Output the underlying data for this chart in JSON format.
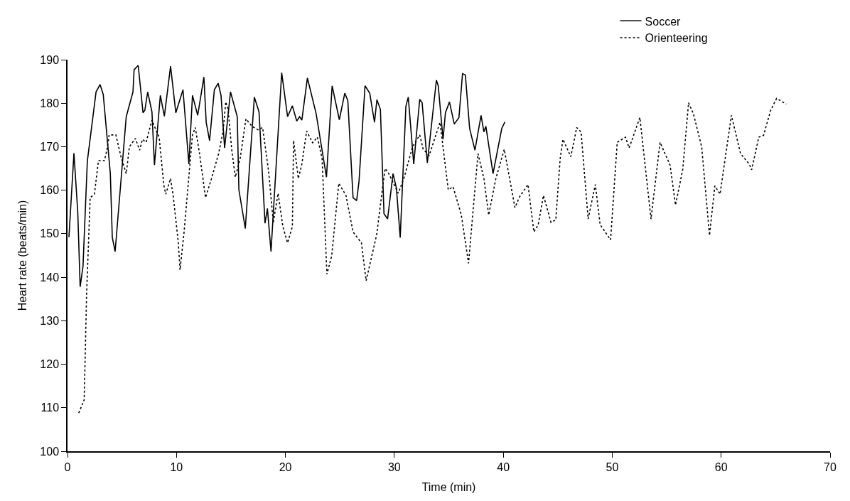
{
  "chart_data": {
    "type": "line",
    "xlabel": "Time (min)",
    "ylabel": "Heart rate (beats/min)",
    "xlim": [
      0,
      70
    ],
    "xticks": [
      0,
      10,
      20,
      30,
      40,
      50,
      60,
      70
    ],
    "ylim": [
      100,
      190
    ],
    "yticks": [
      100,
      110,
      120,
      130,
      140,
      150,
      160,
      170,
      180,
      190
    ],
    "legend": "top right",
    "marker": "none",
    "series": [
      {
        "name": "Soccer",
        "color": "#000000",
        "line_style": "solid",
        "x": [
          0.13,
          0.59,
          0.94,
          1.16,
          1.42,
          1.82,
          2.62,
          2.99,
          3.28,
          3.93,
          4.11,
          4.37,
          5.39,
          6.01,
          6.11,
          6.49,
          6.93,
          7.1,
          7.36,
          7.75,
          7.98,
          8.52,
          8.89,
          9.46,
          9.94,
          10.6,
          11.14,
          11.47,
          11.95,
          12.52,
          12.73,
          13.04,
          13.48,
          13.83,
          14.09,
          14.42,
          14.96,
          15.58,
          15.73,
          16.32,
          17.15,
          17.58,
          18.13,
          18.35,
          18.68,
          19.66,
          20.2,
          20.64,
          21.04,
          21.3,
          21.51,
          22.02,
          22.82,
          23.77,
          24.29,
          24.95,
          25.45,
          25.73,
          26.21,
          26.54,
          26.76,
          27.31,
          27.74,
          28.18,
          28.4,
          28.72,
          29.05,
          29.38,
          29.88,
          30.19,
          30.54,
          31.06,
          31.28,
          31.78,
          32.33,
          32.55,
          33.03,
          33.86,
          34.03,
          34.47,
          34.69,
          35.06,
          35.5,
          35.93,
          36.26,
          36.52,
          36.91,
          37.4,
          37.96,
          38.22,
          38.4,
          39.06,
          39.86,
          40.15
        ],
        "values": [
          149.2,
          168.5,
          155,
          137.8,
          142.5,
          166.7,
          182.6,
          184.3,
          182,
          163.8,
          149.2,
          145.9,
          176.9,
          182.6,
          187.7,
          188.7,
          177.8,
          178.4,
          182.6,
          178,
          165.8,
          181.8,
          177,
          188.5,
          177.8,
          183.1,
          166,
          181.8,
          177.2,
          186,
          175.6,
          171.4,
          183.1,
          184.6,
          181.8,
          169.7,
          182.6,
          176.9,
          160.1,
          151.2,
          181.4,
          178,
          152.4,
          155.8,
          145.9,
          187,
          176.9,
          179.4,
          175.9,
          176.9,
          176.1,
          185.8,
          177.6,
          163,
          184,
          176.2,
          182.3,
          180.6,
          158.3,
          157.6,
          162.1,
          184,
          182.3,
          175.6,
          180.8,
          178.6,
          154.6,
          153.4,
          163.8,
          160.5,
          149.1,
          179.3,
          181.4,
          166,
          180.9,
          180.1,
          166.3,
          185.3,
          184,
          171.7,
          177.8,
          180.3,
          175.2,
          176.7,
          186.8,
          186.5,
          174.2,
          169.2,
          177.2,
          173.4,
          174.7,
          163.8,
          174.2,
          175.7
        ]
      },
      {
        "name": "Orienteering",
        "color": "#000000",
        "line_style": "dotted",
        "x": [
          1.03,
          1.53,
          1.75,
          2.08,
          2.47,
          2.84,
          3.39,
          3.65,
          3.82,
          4.44,
          4.91,
          5.18,
          5.39,
          5.68,
          6.23,
          6.62,
          6.88,
          7.21,
          7.75,
          8.19,
          8.41,
          8.85,
          9.02,
          9.46,
          9.72,
          10.16,
          10.33,
          10.7,
          11.47,
          11.73,
          12.12,
          12.67,
          13.22,
          13.87,
          14.27,
          14.53,
          14.74,
          15.07,
          15.4,
          15.84,
          16.38,
          16.93,
          17.48,
          17.91,
          18.46,
          18.89,
          19.33,
          19.77,
          20.2,
          20.64,
          20.75,
          21.19,
          21.51,
          21.95,
          22.5,
          22.94,
          23.37,
          23.81,
          24.25,
          24.9,
          25.56,
          26.21,
          26.98,
          27.41,
          28.39,
          28.94,
          29.16,
          29.49,
          30.36,
          30.91,
          31.67,
          32.33,
          32.65,
          33.2,
          34.19,
          34.95,
          35.39,
          36.15,
          36.81,
          37.68,
          38.22,
          38.66,
          39.32,
          40.09,
          41.07,
          41.5,
          42.27,
          42.81,
          43.2,
          43.69,
          44.38,
          44.82,
          45.22,
          45.48,
          46.2,
          46.74,
          47.14,
          47.79,
          48.45,
          48.89,
          49.85,
          50.46,
          51.22,
          51.55,
          52.54,
          53.56,
          54.39,
          55.31,
          55.81,
          56.47,
          57.01,
          57.45,
          58.21,
          58.93,
          59.42,
          59.9,
          60.07,
          60.94,
          61.78,
          62.58,
          62.8,
          63.45,
          63.89,
          64.55,
          65.09,
          65.97
        ],
        "values": [
          108.8,
          111.8,
          136,
          158.3,
          159.1,
          166.8,
          166.8,
          169.7,
          172.7,
          172.7,
          167.7,
          165.5,
          163.8,
          170,
          171.9,
          169.2,
          171.7,
          171,
          176.1,
          173.4,
          172.2,
          161,
          159.1,
          162.7,
          158.3,
          148.2,
          141.7,
          150.4,
          172.7,
          174.4,
          168.4,
          158.3,
          162.7,
          168.4,
          173.4,
          180.3,
          178.6,
          169.4,
          163,
          167.2,
          176.4,
          174.7,
          173.9,
          174.4,
          164.3,
          152.6,
          159.3,
          151.6,
          147.9,
          151.6,
          171.4,
          162.7,
          166,
          173.6,
          170.9,
          172.2,
          167.2,
          140.7,
          144.9,
          161.6,
          158.8,
          150.4,
          147.9,
          139.2,
          149.9,
          161,
          165,
          163.8,
          159.3,
          163,
          170,
          172.7,
          169.4,
          168,
          175.6,
          160.1,
          160.8,
          154.3,
          143.2,
          168.4,
          162.7,
          154.3,
          162.7,
          169.4,
          156,
          158.5,
          161.3,
          150.4,
          152,
          158.8,
          152.6,
          153.2,
          167.2,
          171.7,
          167.7,
          174.4,
          173.4,
          153.4,
          161.3,
          152.1,
          148.6,
          171,
          172.2,
          169.7,
          176.7,
          153.4,
          171,
          165.8,
          156.6,
          164.7,
          180.1,
          177.6,
          170,
          149.6,
          161,
          159.1,
          162.1,
          177.2,
          168.4,
          166,
          164.7,
          172.2,
          172.6,
          178.4,
          181.1,
          179.8
        ]
      }
    ]
  }
}
